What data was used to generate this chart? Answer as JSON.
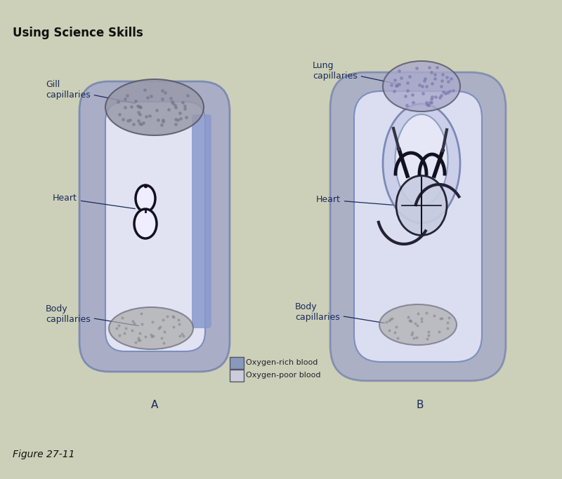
{
  "title": "Using Science Skills",
  "figure_label": "Figure 27-11",
  "bg_color": "#cdd0b8",
  "diagram_A": {
    "label": "A",
    "gill_label": "Gill\ncapillaries",
    "heart_label": "Heart",
    "body_label": "Body\ncapillaries"
  },
  "diagram_B": {
    "label": "B",
    "lung_label": "Lung\ncapillaries",
    "heart_label": "Heart",
    "body_label": "Body\ncapillaries"
  },
  "legend": {
    "rich_label": "Oxygen-rich blood",
    "poor_label": "Oxygen-poor blood",
    "rich_color": "#8899bb",
    "poor_color": "#ccccdd"
  },
  "text_color": "#1a2a5a",
  "tube_outer_color": "#7788bb",
  "tube_fill_dark": "#9099cc",
  "tube_fill_light": "#c8ccee",
  "blob_dark": "#888899",
  "blob_light": "#aaaaaa"
}
